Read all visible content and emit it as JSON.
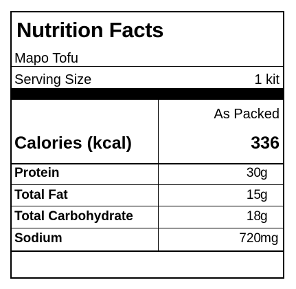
{
  "label": {
    "title": "Nutrition Facts",
    "product_name": "Mapo Tofu",
    "serving_size_label": "Serving Size",
    "serving_size_value": "1 kit",
    "column_header": "As Packed",
    "calories_label": "Calories (kcal)",
    "calories_value": "336",
    "nutrients": [
      {
        "name": "Protein",
        "amount": "30",
        "unit": "g"
      },
      {
        "name": "Total Fat",
        "amount": "15",
        "unit": "g"
      },
      {
        "name": "Total Carbohydrate",
        "amount": "18",
        "unit": "g"
      },
      {
        "name": "Sodium",
        "amount": "720",
        "unit": "mg"
      }
    ]
  }
}
